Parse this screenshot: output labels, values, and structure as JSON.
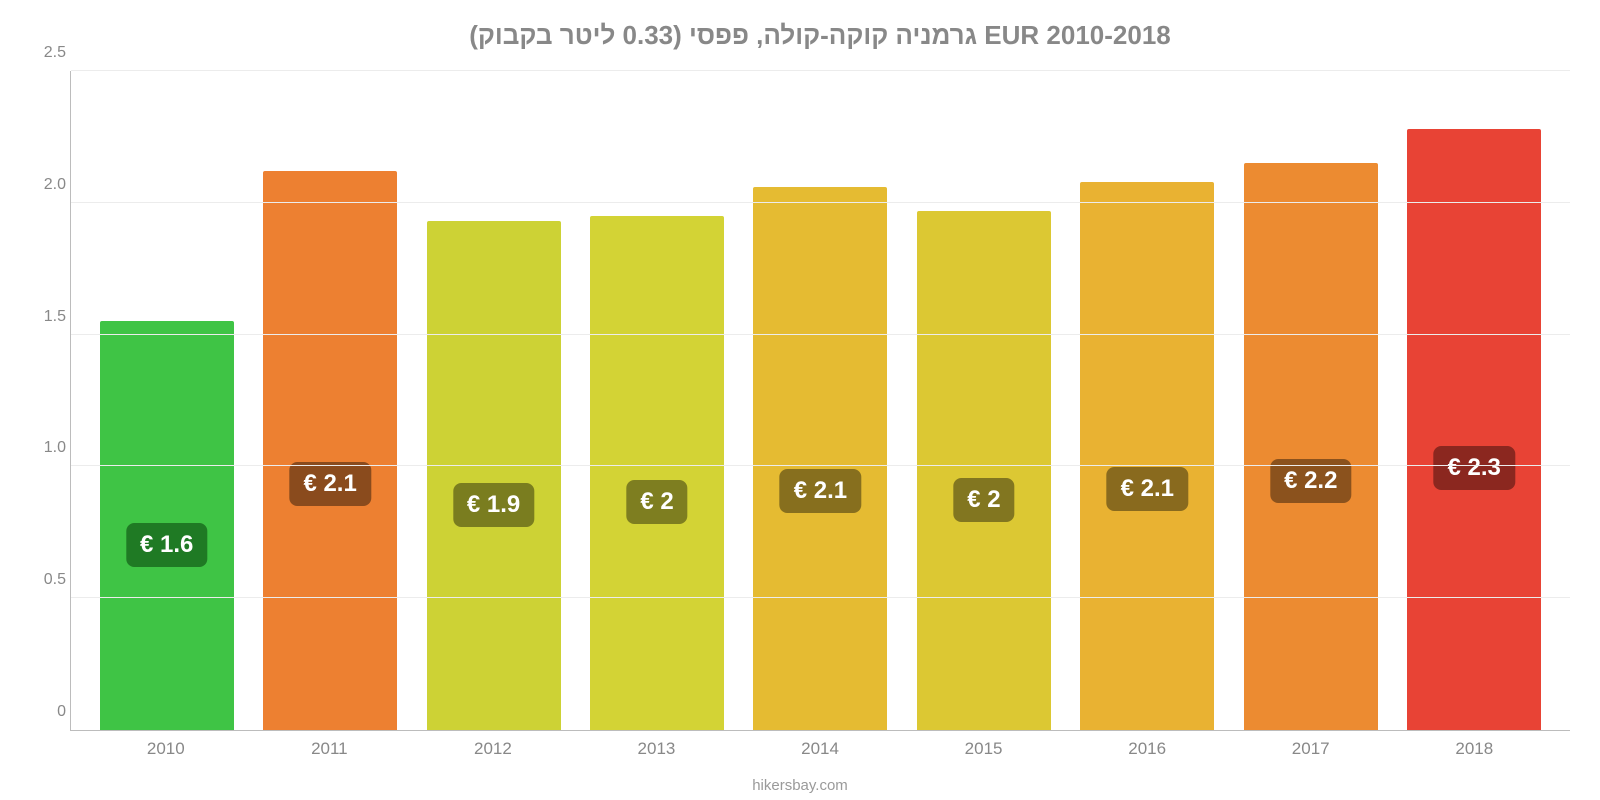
{
  "chart": {
    "type": "bar",
    "title": "גרמניה קוקה-קולה, פפסי (0.33 ליטר בקבוק) EUR 2010-2018",
    "title_color": "#888888",
    "title_fontsize": 26,
    "background_color": "#ffffff",
    "grid_color": "#ececec",
    "axis_color": "#bcbcbc",
    "tick_color": "#888888",
    "tick_fontsize": 16,
    "xlabel_fontsize": 17,
    "value_label_fontsize": 24,
    "bar_width_pct": 82,
    "ylim": [
      0,
      2.5
    ],
    "ytick_step": 0.5,
    "yticks": [
      "0",
      "0.5",
      "1.0",
      "1.5",
      "2.0",
      "2.5"
    ],
    "categories": [
      "2010",
      "2011",
      "2012",
      "2013",
      "2014",
      "2015",
      "2016",
      "2017",
      "2018"
    ],
    "values": [
      1.55,
      2.12,
      1.93,
      1.95,
      2.06,
      1.97,
      2.08,
      2.15,
      2.28
    ],
    "value_labels": [
      "€ 1.6",
      "€ 2.1",
      "€ 1.9",
      "€ 2",
      "€ 2.1",
      "€ 2",
      "€ 2.1",
      "€ 2.2",
      "€ 2.3"
    ],
    "bar_colors": [
      "#3fc445",
      "#ed8031",
      "#cdd235",
      "#d3d335",
      "#e5bb32",
      "#dcc833",
      "#e9b232",
      "#ec8b31",
      "#e84335"
    ],
    "badge_bg_colors": [
      "#1f7a24",
      "#8a4b1d",
      "#7a7d1f",
      "#7e7e20",
      "#876f1e",
      "#827620",
      "#896a1e",
      "#8b521d",
      "#8b271f"
    ],
    "badge_bottom_pct": 40,
    "attribution": "hikersbay.com",
    "attribution_color": "#9a9a9a"
  }
}
